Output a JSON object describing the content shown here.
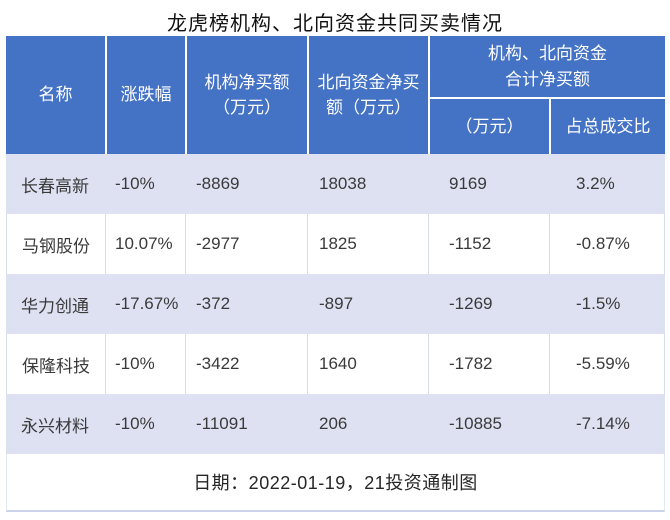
{
  "title": "龙虎榜机构、北向资金共同买卖情况",
  "header": {
    "name": "名称",
    "change": "涨跌幅",
    "inst": "机构净买额\n（万元）",
    "north": "北向资金净买\n额（万元）",
    "group": "机构、北向资金\n合计净买额",
    "group_sub_amount": "（万元）",
    "group_sub_ratio": "占总成交比"
  },
  "footer": {
    "note": "日期：2022-01-19，21投资通制图"
  },
  "colors": {
    "header_bg": "#4472c4",
    "header_text": "#ffffff",
    "row_alt_bg": "#dde1f2",
    "row_bg": "#ffffff",
    "row_divider": "#d8dce9",
    "bottom_border": "#ccd3ea",
    "body_text": "#3a3a3a",
    "title_text": "#111111"
  },
  "chart_data": {
    "type": "table",
    "title": "龙虎榜机构、北向资金共同买卖情况",
    "columns": [
      "名称",
      "涨跌幅",
      "机构净买额（万元）",
      "北向资金净买额（万元）",
      "机构、北向资金合计净买额（万元）",
      "机构、北向资金合计净买额占总成交比"
    ],
    "rows": [
      [
        "长春高新",
        "-10%",
        "-8869",
        "18038",
        "9169",
        "3.2%"
      ],
      [
        "马钢股份",
        "10.07%",
        "-2977",
        "1825",
        "-1152",
        "-0.87%"
      ],
      [
        "华力创通",
        "-17.67%",
        "-372",
        "-897",
        "-1269",
        "-1.5%"
      ],
      [
        "保隆科技",
        "-10%",
        "-3422",
        "1640",
        "-1782",
        "-5.59%"
      ],
      [
        "永兴材料",
        "-10%",
        "-11091",
        "206",
        "-10885",
        "-7.14%"
      ]
    ],
    "source_note": "日期：2022-01-19，21投资通制图"
  }
}
